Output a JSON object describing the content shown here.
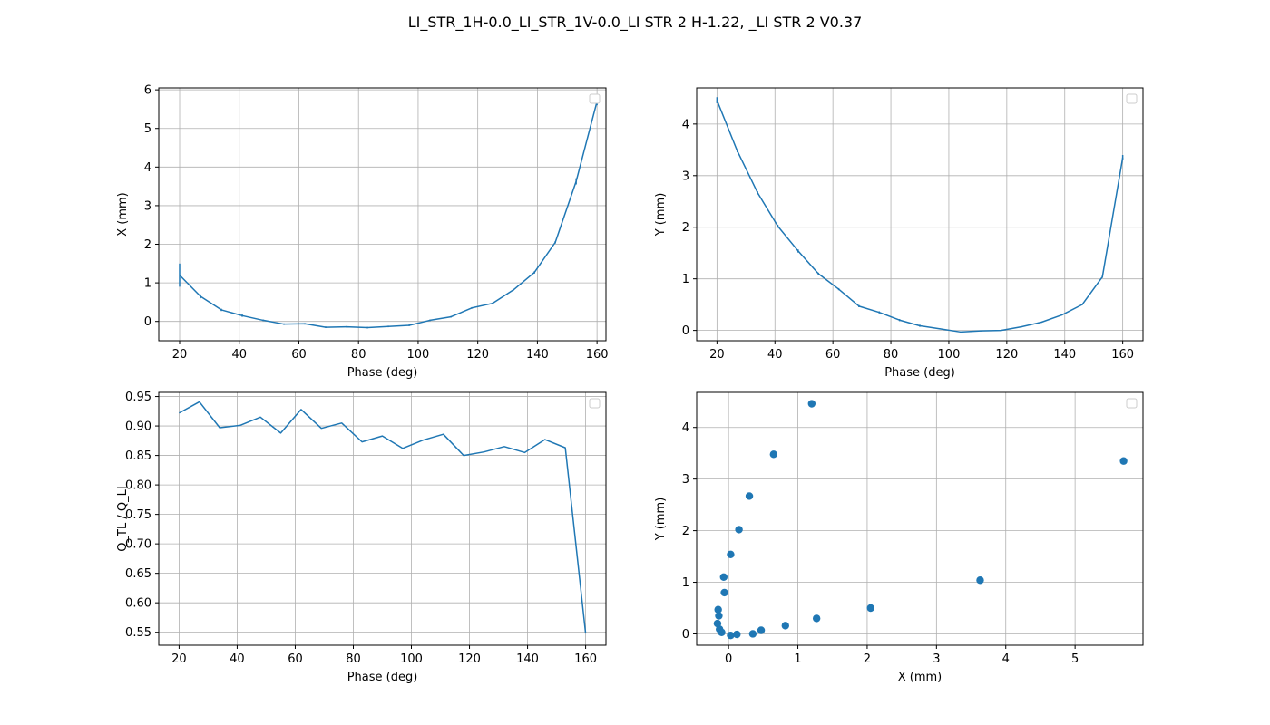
{
  "figure": {
    "suptitle": "LI_STR_1H-0.0_LI_STR_1V-0.0_LI STR 2 H-1.22, _LI STR 2 V0.37"
  },
  "colors": {
    "series": "#1f77b4",
    "grid": "#b0b0b0",
    "axes": "#000000"
  },
  "chart_data": [
    {
      "id": "x-vs-phase",
      "type": "line",
      "title": "",
      "xlabel": "Phase (deg)",
      "ylabel": "X (mm)",
      "xlim": [
        13,
        163
      ],
      "ylim": [
        -0.5,
        6.05
      ],
      "xticks": [
        20,
        40,
        60,
        80,
        100,
        120,
        140,
        160
      ],
      "yticks": [
        0,
        1,
        2,
        3,
        4,
        5,
        6
      ],
      "grid": true,
      "legend": "empty, top-right",
      "x": [
        20,
        27,
        34,
        41,
        48,
        55,
        62,
        69,
        76,
        83,
        90,
        97,
        104,
        111,
        118,
        125,
        132,
        139,
        146,
        153,
        160
      ],
      "y": [
        1.2,
        0.65,
        0.3,
        0.15,
        0.03,
        -0.07,
        -0.06,
        -0.15,
        -0.14,
        -0.16,
        -0.13,
        -0.1,
        0.03,
        0.12,
        0.35,
        0.47,
        0.82,
        1.27,
        2.05,
        3.63,
        5.7
      ],
      "yerr": [
        0.3,
        0.05,
        0.03,
        0.03,
        0.02,
        0.02,
        0.02,
        0.02,
        0.02,
        0.02,
        0.02,
        0.02,
        0.02,
        0.02,
        0.02,
        0.02,
        0.02,
        0.03,
        0.03,
        0.08,
        0.1
      ]
    },
    {
      "id": "y-vs-phase",
      "type": "line",
      "title": "",
      "xlabel": "Phase (deg)",
      "ylabel": "Y (mm)",
      "xlim": [
        13,
        167
      ],
      "ylim": [
        -0.2,
        4.7
      ],
      "xticks": [
        20,
        40,
        60,
        80,
        100,
        120,
        140,
        160
      ],
      "yticks": [
        0,
        1,
        2,
        3,
        4
      ],
      "grid": true,
      "legend": "empty, top-right",
      "x": [
        20,
        27,
        34,
        41,
        48,
        55,
        62,
        69,
        76,
        83,
        90,
        97,
        104,
        111,
        118,
        125,
        132,
        139,
        146,
        153,
        160
      ],
      "y": [
        4.46,
        3.48,
        2.67,
        2.02,
        1.54,
        1.1,
        0.8,
        0.47,
        0.35,
        0.2,
        0.09,
        0.03,
        -0.03,
        -0.01,
        0.0,
        0.07,
        0.16,
        0.3,
        0.5,
        1.04,
        3.35
      ],
      "yerr": [
        0.06,
        0.03,
        0.03,
        0.03,
        0.03,
        0.02,
        0.02,
        0.02,
        0.02,
        0.02,
        0.02,
        0.01,
        0.01,
        0.01,
        0.01,
        0.01,
        0.01,
        0.01,
        0.01,
        0.02,
        0.05
      ]
    },
    {
      "id": "q-ratio-vs-phase",
      "type": "line",
      "title": "",
      "xlabel": "Phase (deg)",
      "ylabel": "Q_TL / Q_LI",
      "xlim": [
        13,
        167
      ],
      "ylim": [
        0.528,
        0.957
      ],
      "xticks": [
        20,
        40,
        60,
        80,
        100,
        120,
        140,
        160
      ],
      "yticks": [
        0.55,
        0.6,
        0.65,
        0.7,
        0.75,
        0.8,
        0.85,
        0.9,
        0.95
      ],
      "ytick_labels": [
        "0.55",
        "0.60",
        "0.65",
        "0.70",
        "0.75",
        "0.80",
        "0.85",
        "0.90",
        "0.95"
      ],
      "grid": true,
      "legend": "empty, top-right",
      "x": [
        20,
        27,
        34,
        41,
        48,
        55,
        62,
        69,
        76,
        83,
        90,
        97,
        104,
        111,
        118,
        125,
        132,
        139,
        146,
        153,
        160
      ],
      "y": [
        0.922,
        0.941,
        0.897,
        0.901,
        0.915,
        0.888,
        0.928,
        0.896,
        0.905,
        0.873,
        0.883,
        0.862,
        0.876,
        0.886,
        0.85,
        0.856,
        0.865,
        0.855,
        0.877,
        0.863,
        0.548
      ]
    },
    {
      "id": "y-vs-x",
      "type": "scatter",
      "title": "",
      "xlabel": "X (mm)",
      "ylabel": "Y (mm)",
      "xlim": [
        -0.46,
        5.98
      ],
      "ylim": [
        -0.22,
        4.68
      ],
      "xticks": [
        0,
        1,
        2,
        3,
        4,
        5
      ],
      "yticks": [
        0,
        1,
        2,
        3,
        4
      ],
      "grid": true,
      "legend": "empty, top-right",
      "x": [
        1.2,
        0.65,
        0.3,
        0.15,
        0.03,
        -0.07,
        -0.06,
        -0.15,
        -0.14,
        -0.16,
        -0.13,
        -0.1,
        0.03,
        0.12,
        0.35,
        0.47,
        0.82,
        1.27,
        2.05,
        3.63,
        5.7
      ],
      "y": [
        4.46,
        3.48,
        2.67,
        2.02,
        1.54,
        1.1,
        0.8,
        0.47,
        0.35,
        0.2,
        0.09,
        0.03,
        -0.03,
        -0.01,
        0.0,
        0.07,
        0.16,
        0.3,
        0.5,
        1.04,
        3.35
      ]
    }
  ]
}
